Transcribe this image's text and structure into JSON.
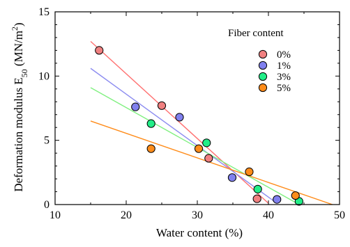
{
  "chart_data": {
    "type": "scatter",
    "xlabel": "Water content (%)",
    "ylabel_main": "Deformation modulus E",
    "ylabel_sub": "50",
    "ylabel_unit": " (MN/m",
    "ylabel_sup": "2",
    "ylabel_close": ")",
    "xlim": [
      10,
      50
    ],
    "ylim": [
      0,
      15
    ],
    "x_ticks": [
      10,
      20,
      30,
      40,
      50
    ],
    "y_ticks": [
      0,
      5,
      10,
      15
    ],
    "grid": false,
    "legend_title": "Fiber content",
    "legend_position": "top-right",
    "series": [
      {
        "name": "0%",
        "color": "#f08080",
        "line_color": "#ff7070",
        "points": [
          [
            16.2,
            12.0
          ],
          [
            25.0,
            7.7
          ],
          [
            31.6,
            3.6
          ],
          [
            38.4,
            0.45
          ]
        ],
        "fit": [
          [
            15.0,
            12.7
          ],
          [
            40.0,
            0.1
          ]
        ]
      },
      {
        "name": "1%",
        "color": "#8080ee",
        "line_color": "#8c8cf0",
        "points": [
          [
            21.3,
            7.6
          ],
          [
            27.5,
            6.8
          ],
          [
            34.9,
            2.1
          ],
          [
            41.2,
            0.4
          ]
        ],
        "fit": [
          [
            15.0,
            10.6
          ],
          [
            41.2,
            0.1
          ]
        ]
      },
      {
        "name": "3%",
        "color": "#22ee88",
        "line_color": "#80f080",
        "points": [
          [
            23.5,
            6.3
          ],
          [
            31.3,
            4.8
          ],
          [
            38.5,
            1.2
          ],
          [
            44.3,
            0.25
          ]
        ],
        "fit": [
          [
            15.0,
            9.1
          ],
          [
            44.0,
            0.1
          ]
        ]
      },
      {
        "name": "5%",
        "color": "#ff8c1a",
        "line_color": "#ff8c1a",
        "points": [
          [
            23.5,
            4.35
          ],
          [
            30.2,
            4.35
          ],
          [
            37.3,
            2.55
          ],
          [
            43.8,
            0.7
          ]
        ],
        "fit": [
          [
            15.0,
            6.5
          ],
          [
            49.0,
            0.0
          ]
        ]
      }
    ]
  }
}
